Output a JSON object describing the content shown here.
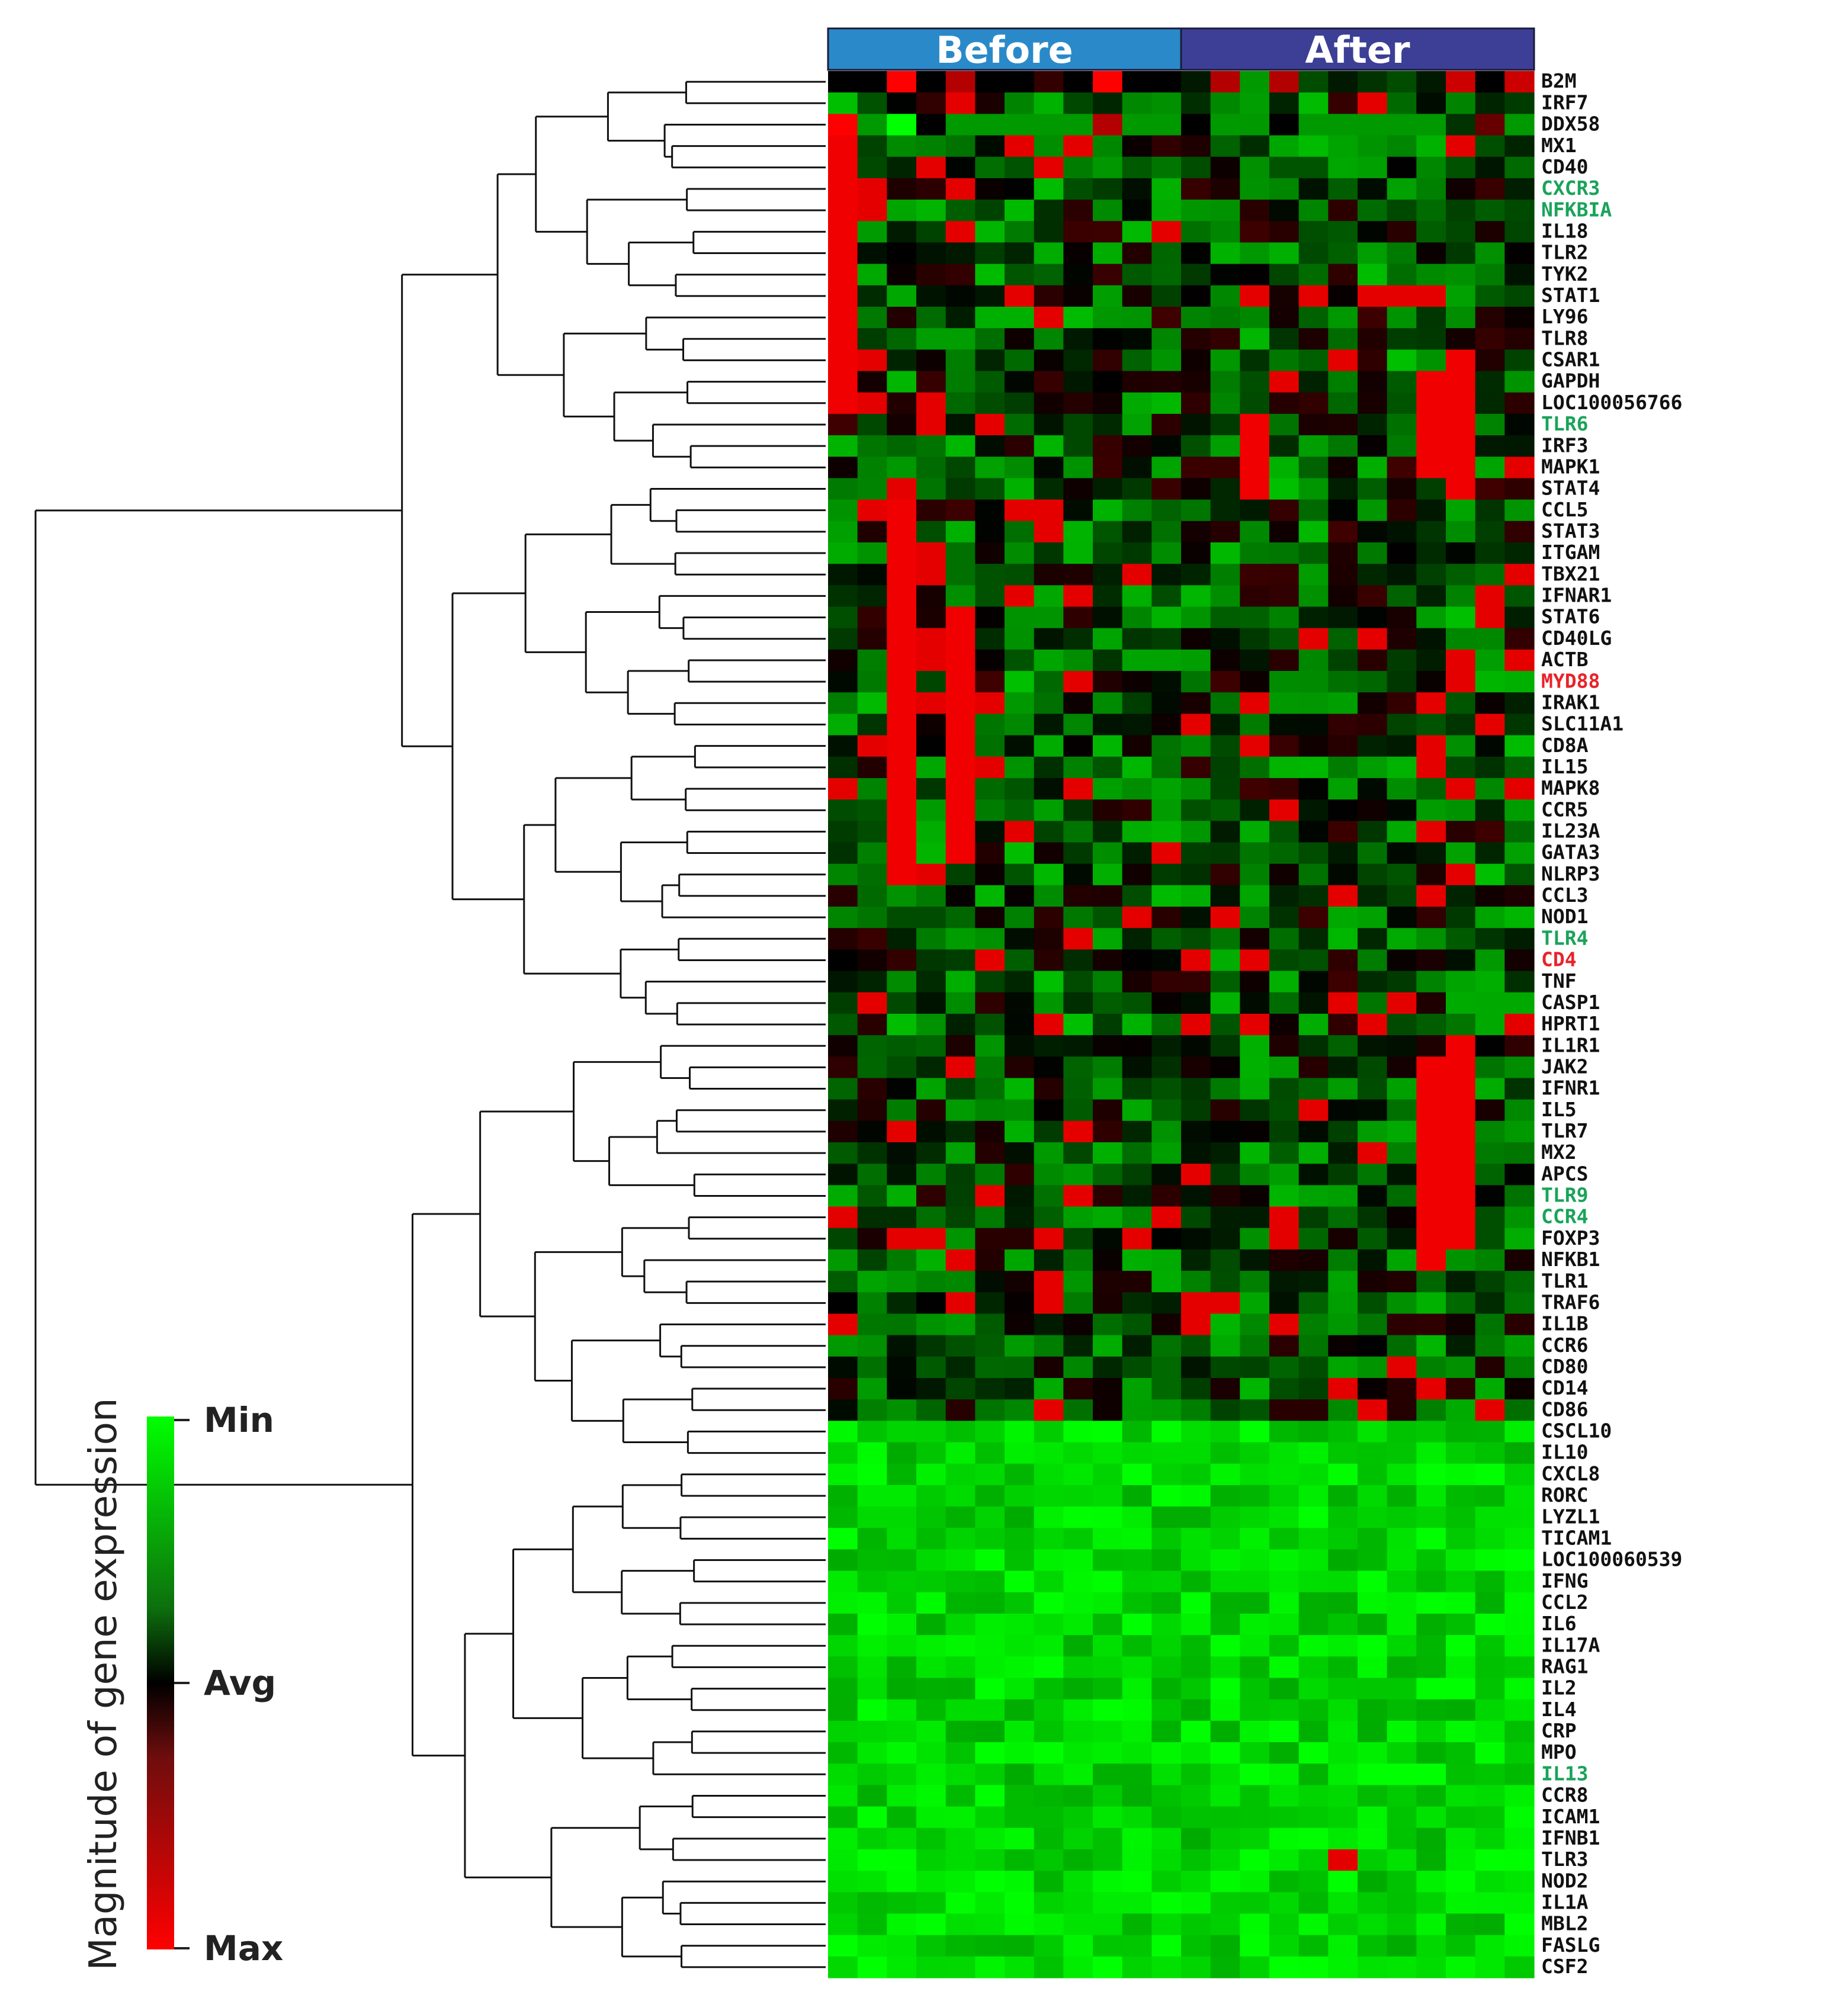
{
  "chart_data": {
    "type": "heatmap",
    "title": "",
    "groups": [
      {
        "name": "Before",
        "color": "#2a8ac9",
        "samples": 12
      },
      {
        "name": "After",
        "color": "#3c3f95",
        "samples": 12
      }
    ],
    "genes": [
      "B2M",
      "IRF7",
      "DDX58",
      "MX1",
      "CD40",
      "CXCR3",
      "NFKBIA",
      "IL18",
      "TLR2",
      "TYK2",
      "STAT1",
      "LY96",
      "TLR8",
      "CSAR1",
      "GAPDH",
      "LOC100056766",
      "TLR6",
      "IRF3",
      "MAPK1",
      "STAT4",
      "CCL5",
      "STAT3",
      "ITGAM",
      "TBX21",
      "IFNAR1",
      "STAT6",
      "CD40LG",
      "ACTB",
      "MYD88",
      "IRAK1",
      "SLC11A1",
      "CD8A",
      "IL15",
      "MAPK8",
      "CCR5",
      "IL23A",
      "GATA3",
      "NLRP3",
      "CCL3",
      "NOD1",
      "TLR4",
      "CD4",
      "TNF",
      "CASP1",
      "HPRT1",
      "IL1R1",
      "JAK2",
      "IFNR1",
      "IL5",
      "TLR7",
      "MX2",
      "APCS",
      "TLR9",
      "CCR4",
      "FOXP3",
      "NFKB1",
      "TLR1",
      "TRAF6",
      "IL1B",
      "CCR6",
      "CD80",
      "CD14",
      "CD86",
      "CSCL10",
      "IL10",
      "CXCL8",
      "RORC",
      "LYZL1",
      "TICAM1",
      "LOC100060539",
      "IFNG",
      "CCL2",
      "IL6",
      "IL17A",
      "RAG1",
      "IL2",
      "IL4",
      "CRP",
      "MPO",
      "IL13",
      "CCR8",
      "ICAM1",
      "IFNB1",
      "TLR3",
      "NOD2",
      "IL1A",
      "MBL2",
      "FASLG",
      "CSF2"
    ],
    "highlighted_genes": {
      "green": [
        "CXCR3",
        "NFKBIA",
        "TLR6",
        "TLR4",
        "TLR9",
        "CCR4",
        "IL13"
      ],
      "red": [
        "MYD88",
        "CD4"
      ]
    },
    "label_colors": {
      "default": "#111111",
      "green": "#1aa35a",
      "red": "#e8232a"
    },
    "color_scale": {
      "low_label": "Min",
      "mid_label": "Avg",
      "high_label": "Max",
      "low_color": "#00ff00",
      "mid_color": "#000000",
      "high_color": "#ff0000",
      "title": "Magnitude of gene expression"
    },
    "value_encoding": "0 = Min (green), 0.5 = Avg (black), 1 = Max (red)",
    "values_rows_top_block_sample": {
      "B2M": [
        0.5,
        0.5,
        1,
        0.5,
        0.85,
        0.5,
        0.5,
        0.6,
        0.5,
        1,
        0.5,
        0.5,
        0.45,
        0.85,
        0.2,
        0.85,
        0.35,
        0.45,
        0.4,
        0.35,
        0.45,
        0.9,
        0.5,
        0.9
      ],
      "DDX58": [
        1,
        0.2,
        0.0,
        0.5,
        0.2,
        0.2,
        0.2,
        0.2,
        0.2,
        0.85,
        0.2,
        0.2,
        0.5,
        0.2,
        0.2,
        0.5,
        0.2,
        0.2,
        0.2,
        0.2,
        0.2,
        0.4,
        0.7,
        0.2
      ]
    },
    "dendrogram": {
      "side": "left",
      "leaves": 89
    },
    "legend_position": "bottom-left"
  }
}
